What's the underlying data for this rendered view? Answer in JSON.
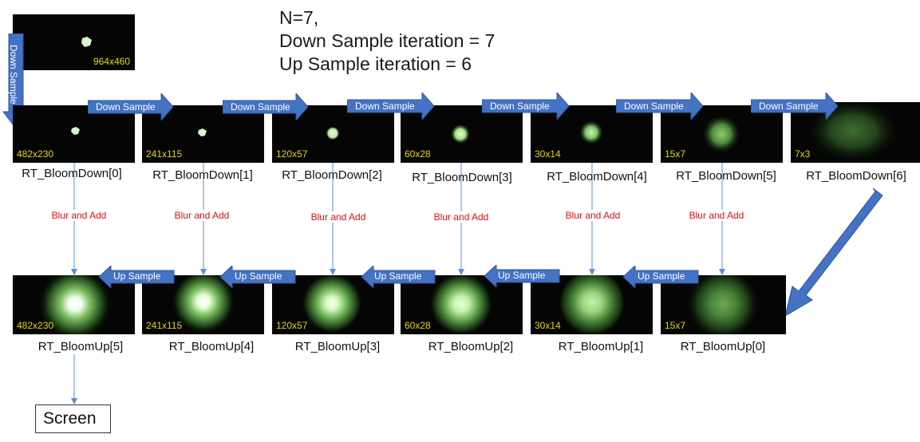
{
  "info": {
    "line1": "N=7,",
    "line2": "Down Sample iteration = 7",
    "line3": "Up Sample iteration = 6"
  },
  "source": {
    "size": "964x460"
  },
  "down": {
    "sizes": [
      "482x230",
      "241x115",
      "120x57",
      "60x28",
      "30x14",
      "15x7",
      "7x3"
    ],
    "labels": [
      "RT_BloomDown[0]",
      "RT_BloomDown[1]",
      "RT_BloomDown[2]",
      "RT_BloomDown[3]",
      "RT_BloomDown[4]",
      "RT_BloomDown[5]",
      "RT_BloomDown[6]"
    ]
  },
  "up": {
    "sizes": [
      "482x230",
      "241x115",
      "120x57",
      "60x28",
      "30x14",
      "15x7"
    ],
    "labels": [
      "RT_BloomUp[5]",
      "RT_BloomUp[4]",
      "RT_BloomUp[3]",
      "RT_BloomUp[2]",
      "RT_BloomUp[1]",
      "RT_BloomUp[0]"
    ]
  },
  "arrows": {
    "down_sample": "Down Sample",
    "up_sample": "Up Sample",
    "blur_and_add": "Blur and Add"
  },
  "screen": "Screen",
  "colors": {
    "arrow_fill": "#4472c4",
    "arrow_stroke": "#2f5597",
    "connector": "#5b8fd0",
    "size_text": "#e6d600",
    "blur_text": "#e01010",
    "texture_bg": "#050505",
    "glow": "#c8f0b0"
  }
}
